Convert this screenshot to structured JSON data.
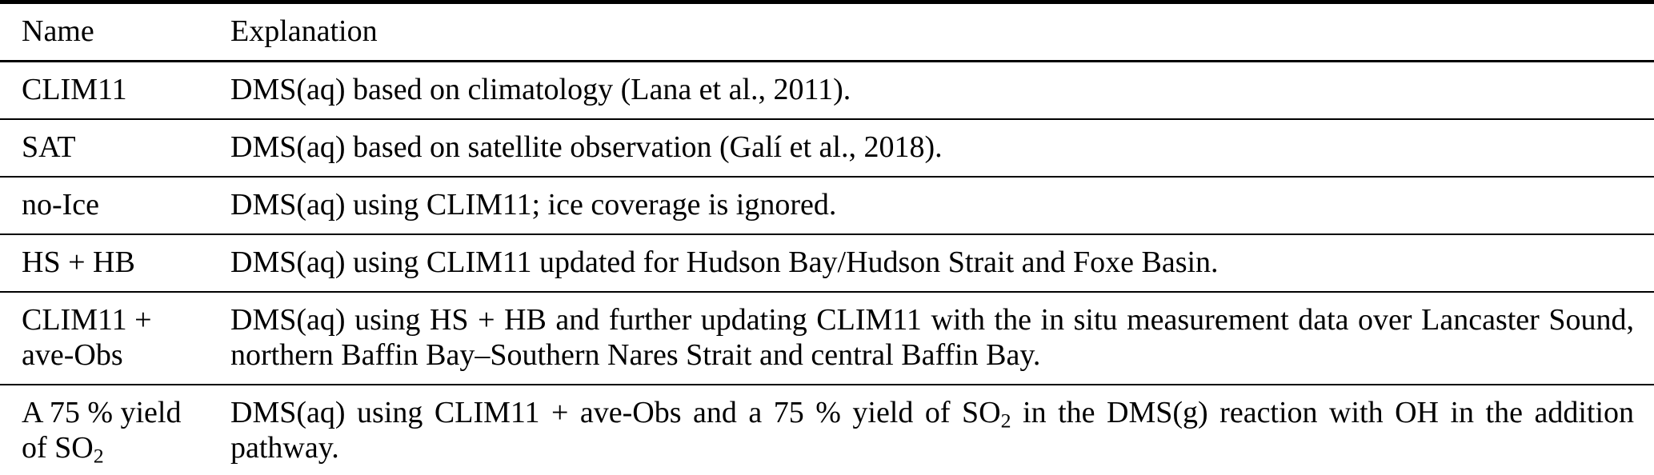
{
  "colors": {
    "background": "#ffffff",
    "text": "#000000",
    "rule": "#000000"
  },
  "table": {
    "header": {
      "name": "Name",
      "explanation": "Explanation"
    },
    "rows": [
      {
        "name": [
          {
            "t": "CLIM11"
          }
        ],
        "explanation": [
          {
            "t": "DMS(aq) based on climatology (Lana et al., 2011)."
          }
        ]
      },
      {
        "name": [
          {
            "t": "SAT"
          }
        ],
        "explanation": [
          {
            "t": "DMS(aq) based on satellite observation (Galí et al., 2018)."
          }
        ]
      },
      {
        "name": [
          {
            "t": "no-Ice"
          }
        ],
        "explanation": [
          {
            "t": "DMS(aq) using CLIM11; ice coverage is ignored."
          }
        ]
      },
      {
        "name": [
          {
            "t": "HS + HB"
          }
        ],
        "explanation": [
          {
            "t": "DMS(aq) using CLIM11 updated for Hudson Bay/Hudson Strait and Foxe Basin."
          }
        ]
      },
      {
        "name": [
          {
            "t": "CLIM11 + ave-Obs"
          }
        ],
        "explanation": [
          {
            "t": "DMS(aq) using HS + HB and further updating CLIM11 with the in situ measurement data over Lancaster Sound, northern Baffin Bay–Southern Nares Strait and central Baffin Bay."
          }
        ]
      },
      {
        "name": [
          {
            "t": "A 75 % yield of SO"
          },
          {
            "t": "2",
            "sub": true
          }
        ],
        "explanation": [
          {
            "t": "DMS(aq) using CLIM11 + ave-Obs and a 75 % yield of SO"
          },
          {
            "t": "2",
            "sub": true
          },
          {
            "t": " in the DMS(g) reaction with OH in the addition pathway."
          }
        ]
      }
    ]
  }
}
